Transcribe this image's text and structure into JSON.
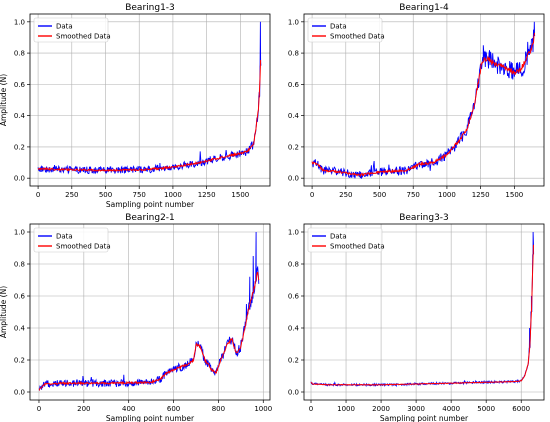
{
  "chart_data": [
    {
      "type": "line",
      "title": "Bearing1-3",
      "xlabel": "Sampling point number",
      "ylabel": "Amplitude (N)",
      "xlim": [
        -60,
        1720
      ],
      "ylim": [
        -0.05,
        1.05
      ],
      "xticks": [
        0,
        250,
        500,
        750,
        1000,
        1250,
        1500
      ],
      "yticks": [
        0.0,
        0.2,
        0.4,
        0.6,
        0.8,
        1.0
      ],
      "grid": true,
      "legend_position": "upper-left",
      "x_max": 1650,
      "raw_noise": 0.02,
      "series": [
        {
          "name": "Data",
          "color": "#0000ff"
        },
        {
          "name": "Smoothed Data",
          "color": "#ff0000"
        }
      ],
      "trend": [
        [
          0,
          0.06
        ],
        [
          200,
          0.055
        ],
        [
          500,
          0.05
        ],
        [
          800,
          0.055
        ],
        [
          1000,
          0.07
        ],
        [
          1200,
          0.1
        ],
        [
          1400,
          0.14
        ],
        [
          1550,
          0.17
        ],
        [
          1600,
          0.22
        ],
        [
          1620,
          0.35
        ],
        [
          1635,
          0.45
        ],
        [
          1645,
          0.6
        ],
        [
          1650,
          0.75
        ]
      ],
      "spikes": [
        [
          1649,
          1.0
        ],
        [
          1640,
          0.55
        ]
      ]
    },
    {
      "type": "line",
      "title": "Bearing1-4",
      "xlabel": "",
      "ylabel": "",
      "xlim": [
        -60,
        1720
      ],
      "ylim": [
        -0.05,
        1.05
      ],
      "xticks": [
        0,
        250,
        500,
        750,
        1000,
        1250,
        1500
      ],
      "yticks": [
        0.0,
        0.2,
        0.4,
        0.6,
        0.8,
        1.0
      ],
      "grid": true,
      "legend_position": "upper-left",
      "x_max": 1650,
      "raw_noise": 0.025,
      "series": [
        {
          "name": "Data",
          "color": "#0000ff"
        },
        {
          "name": "Smoothed Data",
          "color": "#ff0000"
        }
      ],
      "trend": [
        [
          0,
          0.1
        ],
        [
          40,
          0.09
        ],
        [
          80,
          0.05
        ],
        [
          200,
          0.04
        ],
        [
          350,
          0.02
        ],
        [
          500,
          0.04
        ],
        [
          700,
          0.05
        ],
        [
          800,
          0.09
        ],
        [
          900,
          0.1
        ],
        [
          1000,
          0.15
        ],
        [
          1100,
          0.25
        ],
        [
          1150,
          0.32
        ],
        [
          1200,
          0.45
        ],
        [
          1230,
          0.6
        ],
        [
          1260,
          0.75
        ],
        [
          1300,
          0.77
        ],
        [
          1350,
          0.73
        ],
        [
          1400,
          0.72
        ],
        [
          1450,
          0.7
        ],
        [
          1500,
          0.67
        ],
        [
          1550,
          0.7
        ],
        [
          1600,
          0.78
        ],
        [
          1640,
          0.86
        ],
        [
          1650,
          0.93
        ]
      ],
      "spikes": [
        [
          1648,
          1.0
        ],
        [
          1270,
          0.85
        ]
      ]
    },
    {
      "type": "line",
      "title": "Bearing2-1",
      "xlabel": "Sampling point number",
      "ylabel": "Amplitude (N)",
      "xlim": [
        -40,
        1030
      ],
      "ylim": [
        -0.05,
        1.05
      ],
      "xticks": [
        0,
        200,
        400,
        600,
        800,
        1000
      ],
      "yticks": [
        0.0,
        0.2,
        0.4,
        0.6,
        0.8,
        1.0
      ],
      "grid": true,
      "legend_position": "upper-left",
      "x_max": 980,
      "raw_noise": 0.02,
      "series": [
        {
          "name": "Data",
          "color": "#0000ff"
        },
        {
          "name": "Smoothed Data",
          "color": "#ff0000"
        }
      ],
      "trend": [
        [
          0,
          0.01
        ],
        [
          10,
          0.03
        ],
        [
          30,
          0.05
        ],
        [
          100,
          0.055
        ],
        [
          300,
          0.055
        ],
        [
          500,
          0.06
        ],
        [
          540,
          0.08
        ],
        [
          570,
          0.12
        ],
        [
          620,
          0.15
        ],
        [
          660,
          0.17
        ],
        [
          690,
          0.2
        ],
        [
          700,
          0.3
        ],
        [
          720,
          0.28
        ],
        [
          740,
          0.2
        ],
        [
          770,
          0.14
        ],
        [
          790,
          0.12
        ],
        [
          810,
          0.2
        ],
        [
          840,
          0.3
        ],
        [
          860,
          0.33
        ],
        [
          880,
          0.24
        ],
        [
          900,
          0.28
        ],
        [
          920,
          0.42
        ],
        [
          940,
          0.55
        ],
        [
          960,
          0.65
        ],
        [
          975,
          0.75
        ],
        [
          980,
          0.7
        ]
      ],
      "spikes": [
        [
          968,
          1.0
        ],
        [
          955,
          0.85
        ],
        [
          940,
          0.72
        ],
        [
          925,
          0.55
        ]
      ]
    },
    {
      "type": "line",
      "title": "Bearing3-3",
      "xlabel": "Sampling point number",
      "ylabel": "",
      "xlim": [
        -200,
        6650
      ],
      "ylim": [
        -0.05,
        1.05
      ],
      "xticks": [
        0,
        1000,
        2000,
        3000,
        4000,
        5000,
        6000
      ],
      "yticks": [
        0.0,
        0.2,
        0.4,
        0.6,
        0.8,
        1.0
      ],
      "grid": true,
      "legend_position": "upper-left",
      "x_max": 6350,
      "raw_noise": 0.006,
      "series": [
        {
          "name": "Data",
          "color": "#0000ff"
        },
        {
          "name": "Smoothed Data",
          "color": "#ff0000"
        }
      ],
      "trend": [
        [
          0,
          0.06
        ],
        [
          50,
          0.05
        ],
        [
          500,
          0.045
        ],
        [
          2000,
          0.045
        ],
        [
          4000,
          0.055
        ],
        [
          5800,
          0.065
        ],
        [
          6000,
          0.07
        ],
        [
          6100,
          0.1
        ],
        [
          6200,
          0.18
        ],
        [
          6250,
          0.3
        ],
        [
          6300,
          0.55
        ],
        [
          6330,
          0.8
        ],
        [
          6350,
          0.92
        ]
      ],
      "spikes": [
        [
          6340,
          1.0
        ],
        [
          6290,
          0.6
        ],
        [
          6240,
          0.4
        ]
      ]
    }
  ]
}
